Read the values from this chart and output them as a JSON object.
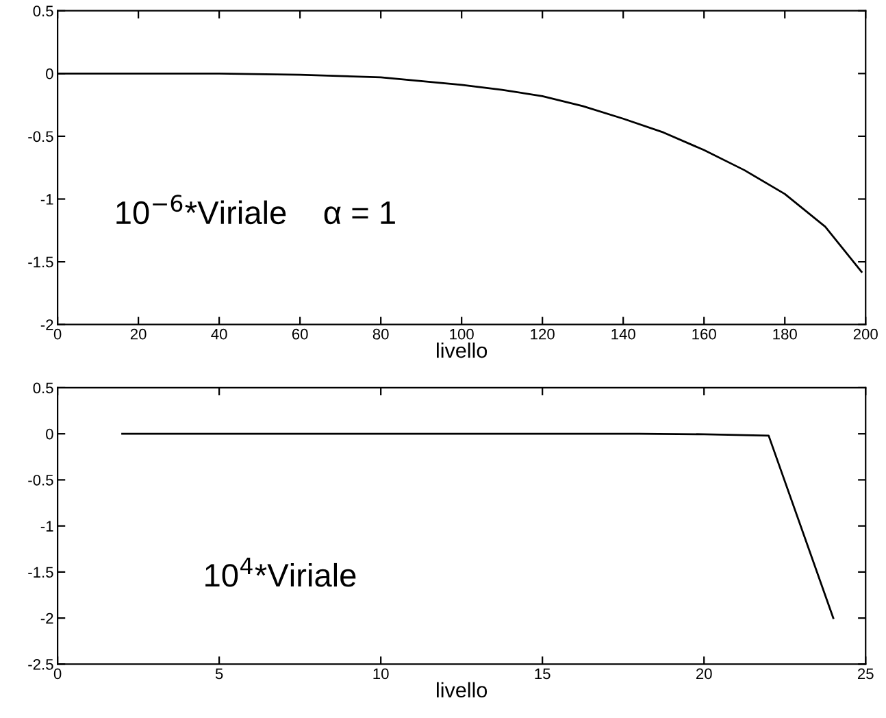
{
  "chart_data": [
    {
      "type": "line",
      "xlabel": "livello",
      "annotations": [
        "10$^{−6}$*Viriale    α = 1"
      ],
      "x": [
        0,
        20,
        40,
        60,
        80,
        100,
        110,
        120,
        130,
        140,
        150,
        160,
        170,
        180,
        190,
        199
      ],
      "series": [
        {
          "color": "#000000",
          "values": [
            0,
            0,
            0,
            -0.01,
            -0.03,
            -0.09,
            -0.13,
            -0.18,
            -0.26,
            -0.36,
            -0.47,
            -0.61,
            -0.77,
            -0.96,
            -1.22,
            -1.58
          ]
        }
      ],
      "xlim": [
        0,
        200
      ],
      "xticks": [
        0,
        20,
        40,
        60,
        80,
        100,
        120,
        140,
        160,
        180,
        200
      ],
      "ylim": [
        -2,
        0.5
      ],
      "yticks": [
        0.5,
        0,
        {
          "value": -0.5,
          "label": "-0.5"
        },
        {
          "value": -1,
          "label": "-1"
        },
        {
          "value": -1.5,
          "label": "-1.5"
        },
        {
          "value": -2,
          "label": "-2"
        }
      ],
      "grid": false,
      "legend": false
    },
    {
      "type": "line",
      "xlabel": "livello",
      "annotations": [
        "10$^{4}$*Viriale"
      ],
      "x": [
        2,
        4,
        6,
        8,
        10,
        12,
        14,
        16,
        18,
        20,
        22,
        24
      ],
      "series": [
        {
          "color": "#000000",
          "values": [
            0,
            0,
            0,
            0,
            0,
            0,
            0,
            0,
            0,
            -0.005,
            -0.02,
            -2
          ]
        }
      ],
      "xlim": [
        0,
        25
      ],
      "xticks": [
        0,
        5,
        10,
        15,
        20,
        25
      ],
      "ylim": [
        -2.5,
        0.5
      ],
      "yticks": [
        0.5,
        0,
        {
          "value": -0.5,
          "label": "-0.5"
        },
        {
          "value": -1,
          "label": "-1"
        },
        {
          "value": -1.5,
          "label": "-1.5"
        },
        {
          "value": -2,
          "label": "-2"
        },
        {
          "value": -2.5,
          "label": "-2.5"
        }
      ],
      "grid": false,
      "legend": false
    }
  ]
}
